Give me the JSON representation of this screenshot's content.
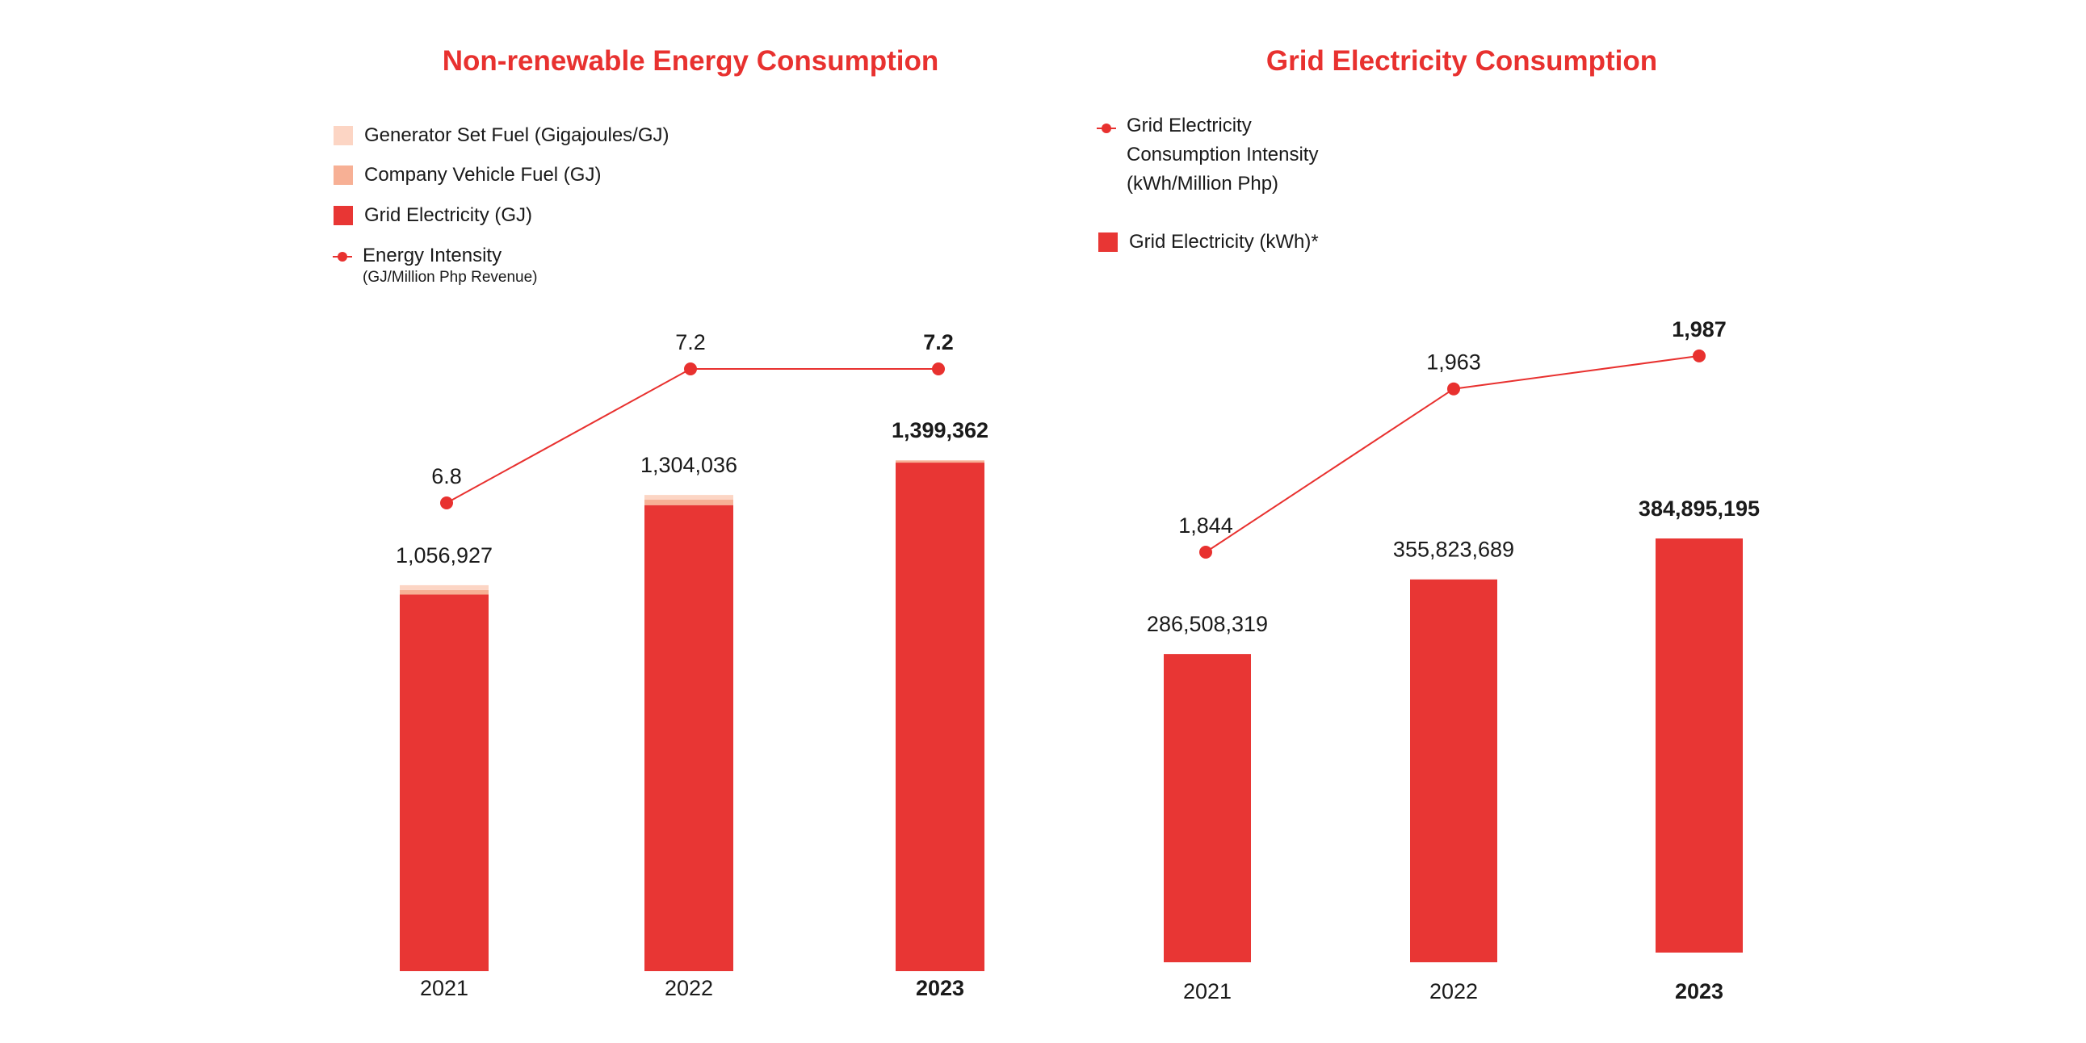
{
  "colors": {
    "accent": "#e8312f",
    "grid_electricity": "#e83634",
    "company_vehicle": "#f7b095",
    "generator_set": "#fcd5c4",
    "text": "#1a1a1a"
  },
  "chart_data": [
    {
      "type": "bar",
      "stacked": true,
      "title": "Non-renewable Energy Consumption",
      "categories": [
        "2021",
        "2022",
        "2023"
      ],
      "series": [
        {
          "name": "Grid Electricity (GJ)",
          "values": [
            1031400,
            1276200,
            1392600
          ],
          "color": "#e83634"
        },
        {
          "name": "Company Vehicle Fuel (GJ)",
          "values": [
            12500,
            14800,
            5500
          ],
          "color": "#f7b095"
        },
        {
          "name": "Generator Set Fuel (Gigajoules/GJ)",
          "values": [
            13027,
            13036,
            1262
          ],
          "color": "#fcd5c4"
        }
      ],
      "totals": [
        "1,056,927",
        "1,304,036",
        "1,399,362"
      ],
      "line": {
        "name": "Energy Intensity",
        "name_sub": "(GJ/Million Php Revenue)",
        "values": [
          6.8,
          7.2,
          7.2
        ],
        "labels": [
          "6.8",
          "7.2",
          "7.2"
        ]
      },
      "legend": [
        {
          "label": "Generator Set Fuel (Gigajoules/GJ)",
          "kind": "swatch",
          "color": "#fcd5c4"
        },
        {
          "label": "Company Vehicle Fuel (GJ)",
          "kind": "swatch",
          "color": "#f7b095"
        },
        {
          "label": "Grid Electricity (GJ)",
          "kind": "swatch",
          "color": "#e83634"
        },
        {
          "label": "Energy Intensity",
          "sub": "(GJ/Million Php Revenue)",
          "kind": "line",
          "color": "#e8312f"
        }
      ],
      "bold_category": "2023"
    },
    {
      "type": "bar",
      "title": "Grid Electricity Consumption",
      "categories": [
        "2021",
        "2022",
        "2023"
      ],
      "series": [
        {
          "name": "Grid Electricity (kWh)*",
          "values": [
            286508319,
            355823689,
            384895195
          ],
          "color": "#e83634"
        }
      ],
      "totals": [
        "286,508,319",
        "355,823,689",
        "384,895,195"
      ],
      "line": {
        "name": "Grid Electricity Consumption Intensity (kWh/Million Php)",
        "values": [
          1844,
          1963,
          1987
        ],
        "labels": [
          "1,844",
          "1,963",
          "1,987"
        ]
      },
      "legend": [
        {
          "label_lines": [
            "Grid Electricity",
            "Consumption Intensity",
            "(kWh/Million Php)"
          ],
          "kind": "line",
          "color": "#e8312f"
        },
        {
          "label": "Grid Electricity (kWh)*",
          "kind": "swatch",
          "color": "#e83634"
        }
      ],
      "bold_category": "2023"
    }
  ]
}
